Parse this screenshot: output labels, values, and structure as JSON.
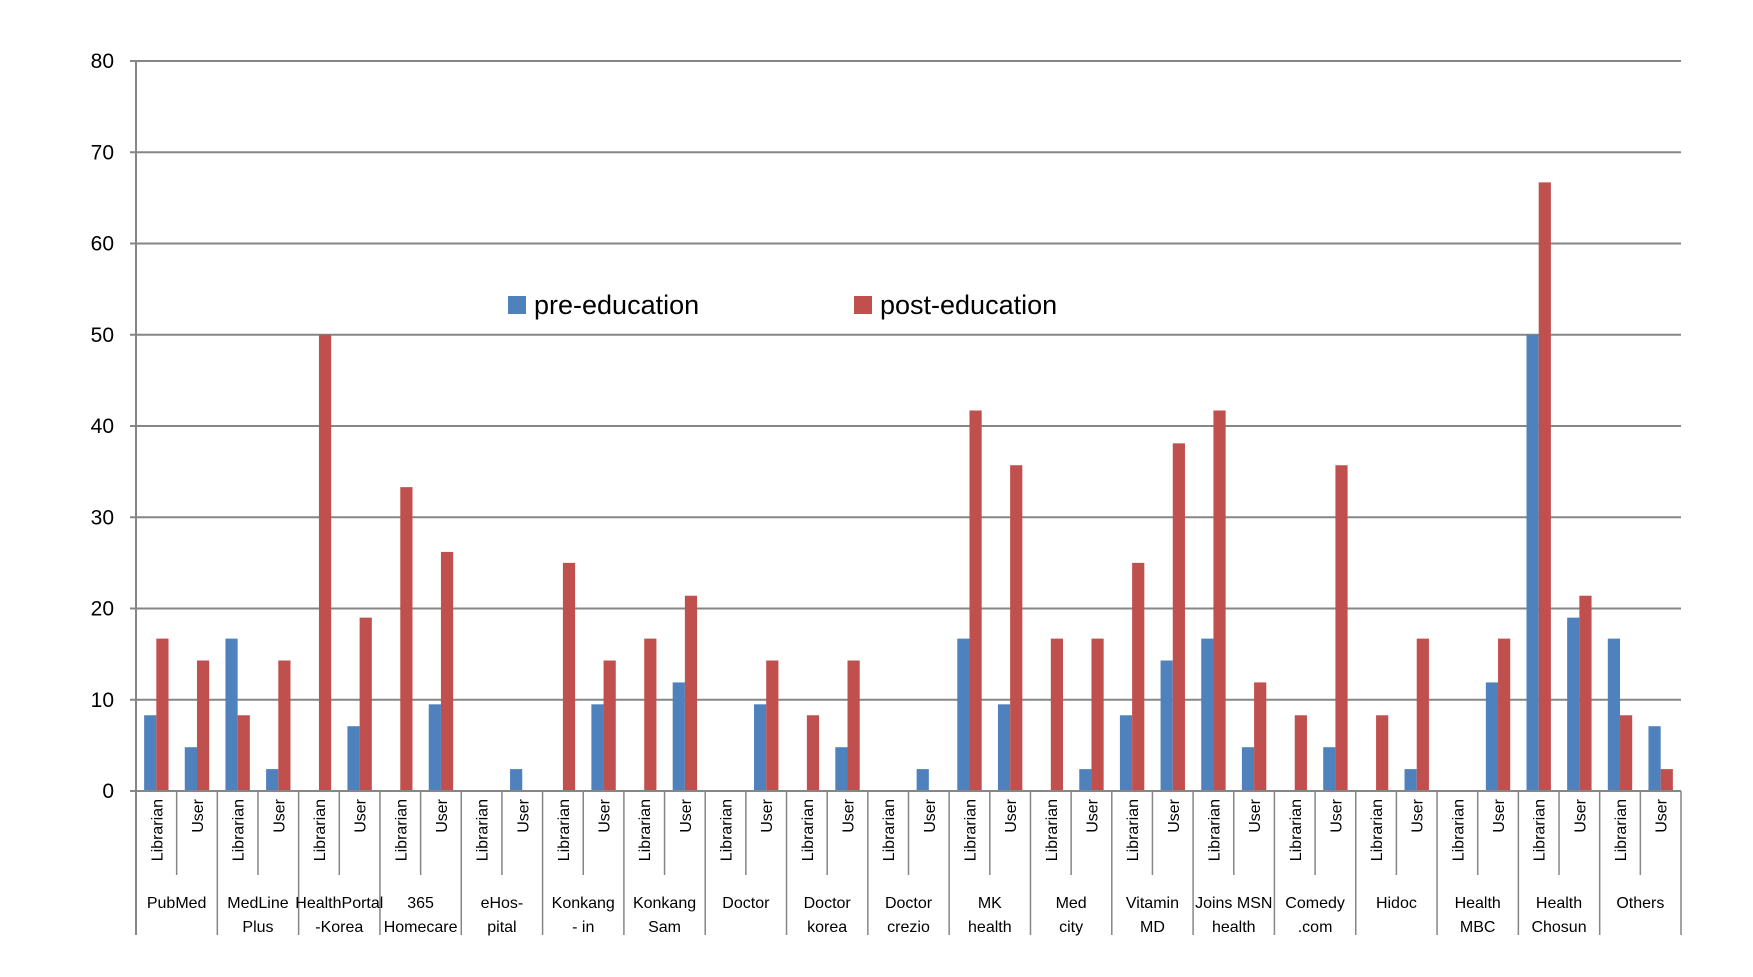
{
  "chart_data": {
    "type": "bar",
    "title": "",
    "xlabel": "",
    "ylabel": "",
    "ylim": [
      0,
      80
    ],
    "yticks": [
      "0",
      "10",
      "20",
      "30",
      "40",
      "50",
      "60",
      "70",
      "80"
    ],
    "grid": true,
    "legend_position": "top-center (inside plot)",
    "series": [
      {
        "name": "pre-education",
        "color": "#4F81BD"
      },
      {
        "name": "post-education",
        "color": "#C0504D"
      }
    ],
    "subgroups": [
      "Librarian",
      "User"
    ],
    "groups": [
      {
        "label": [
          "PubMed",
          ""
        ],
        "Librarian": [
          8.3,
          16.7
        ],
        "User": [
          4.8,
          14.3
        ]
      },
      {
        "label": [
          "MedLine",
          "Plus"
        ],
        "Librarian": [
          16.7,
          8.3
        ],
        "User": [
          2.4,
          14.3
        ]
      },
      {
        "label": [
          "HealthPortal",
          "-Korea"
        ],
        "Librarian": [
          0,
          50.0
        ],
        "User": [
          7.1,
          19.0
        ]
      },
      {
        "label": [
          "365",
          "Homecare"
        ],
        "Librarian": [
          0,
          33.3
        ],
        "User": [
          9.5,
          26.2
        ]
      },
      {
        "label": [
          "eHos-",
          "pital"
        ],
        "Librarian": [
          0,
          0
        ],
        "User": [
          2.4,
          0
        ]
      },
      {
        "label": [
          "Konkang",
          "- in"
        ],
        "Librarian": [
          0,
          25.0
        ],
        "User": [
          9.5,
          14.3
        ]
      },
      {
        "label": [
          "Konkang",
          "Sam"
        ],
        "Librarian": [
          0,
          16.7
        ],
        "User": [
          11.9,
          21.4
        ]
      },
      {
        "label": [
          "Doctor",
          ""
        ],
        "Librarian": [
          0,
          0
        ],
        "User": [
          9.5,
          14.3
        ]
      },
      {
        "label": [
          "Doctor",
          "korea"
        ],
        "Librarian": [
          0,
          8.3
        ],
        "User": [
          4.8,
          14.3
        ]
      },
      {
        "label": [
          "Doctor",
          "crezio"
        ],
        "Librarian": [
          0,
          0
        ],
        "User": [
          2.4,
          0
        ]
      },
      {
        "label": [
          "MK",
          "health"
        ],
        "Librarian": [
          16.7,
          41.7
        ],
        "User": [
          9.5,
          35.7
        ]
      },
      {
        "label": [
          "Med",
          "city"
        ],
        "Librarian": [
          0,
          16.7
        ],
        "User": [
          2.4,
          16.7
        ]
      },
      {
        "label": [
          "Vitamin",
          "MD"
        ],
        "Librarian": [
          8.3,
          25.0
        ],
        "User": [
          14.3,
          38.1
        ]
      },
      {
        "label": [
          "Joins MSN",
          "health"
        ],
        "Librarian": [
          16.7,
          41.7
        ],
        "User": [
          4.8,
          11.9
        ]
      },
      {
        "label": [
          "Comedy",
          ".com"
        ],
        "Librarian": [
          0,
          8.3
        ],
        "User": [
          4.8,
          35.7
        ]
      },
      {
        "label": [
          "Hidoc",
          ""
        ],
        "Librarian": [
          0,
          8.3
        ],
        "User": [
          2.4,
          16.7
        ]
      },
      {
        "label": [
          "Health",
          "MBC"
        ],
        "Librarian": [
          0,
          0
        ],
        "User": [
          11.9,
          16.7
        ]
      },
      {
        "label": [
          "Health",
          "Chosun"
        ],
        "Librarian": [
          50.0,
          66.7
        ],
        "User": [
          19.0,
          21.4
        ]
      },
      {
        "label": [
          "Others",
          ""
        ],
        "Librarian": [
          16.7,
          8.3
        ],
        "User": [
          7.1,
          2.4
        ]
      }
    ]
  }
}
